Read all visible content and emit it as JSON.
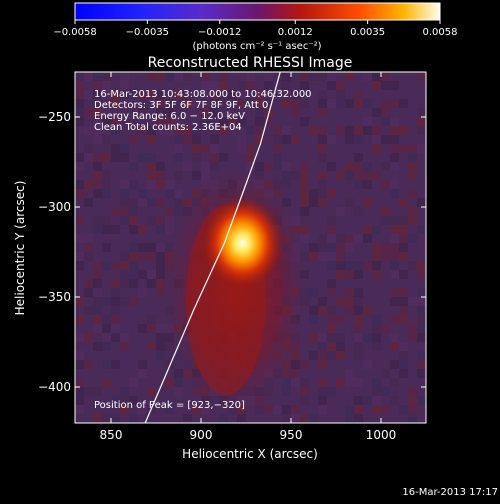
{
  "chart_data": {
    "type": "heatmap",
    "title": "Reconstructed RHESSI Image",
    "xlabel": "Heliocentric X (arcsec)",
    "ylabel": "Heliocentric Y (arcsec)",
    "xlim": [
      830,
      1025
    ],
    "ylim": [
      -420,
      -225
    ],
    "x_ticks": [
      850,
      900,
      950,
      1000
    ],
    "y_ticks": [
      -250,
      -300,
      -350,
      -400
    ],
    "colorbar": {
      "range": [
        -0.0058,
        0.0058
      ],
      "tick_values": [
        -0.0058,
        -0.0035,
        -0.0012,
        0.0012,
        0.0035,
        0.0058
      ],
      "tick_labels": [
        "−0.0058",
        "−0.0035",
        "−0.0012",
        "0.0012",
        "0.0035",
        "0.0058"
      ],
      "label": "(photons cm⁻² s⁻¹ asec⁻²)"
    },
    "annotations": [
      "16-Mar-2013 10:43:08.000 to 10:46:32.000",
      "Detectors: 3F 5F 6F 7F 8F 9F, Att 0",
      "Energy Range: 6.0 − 12.0 keV",
      "Clean    Total counts: 2.36E+04"
    ],
    "peak_label": "Position of Peak = [923,−320]",
    "peak": {
      "x": 923,
      "y": -320
    },
    "limb_curve": [
      [
        869,
        -420
      ],
      [
        896,
        -357
      ],
      [
        913,
        -320
      ],
      [
        924,
        -290
      ],
      [
        933,
        -265
      ],
      [
        944,
        -225
      ]
    ]
  },
  "footer": {
    "timestamp": "16-Mar-2013 17:17"
  },
  "colors": {
    "background": "#000000",
    "text": "#ffffff",
    "image_background": "#4a2a58",
    "peak_core": "#ffffe6"
  }
}
